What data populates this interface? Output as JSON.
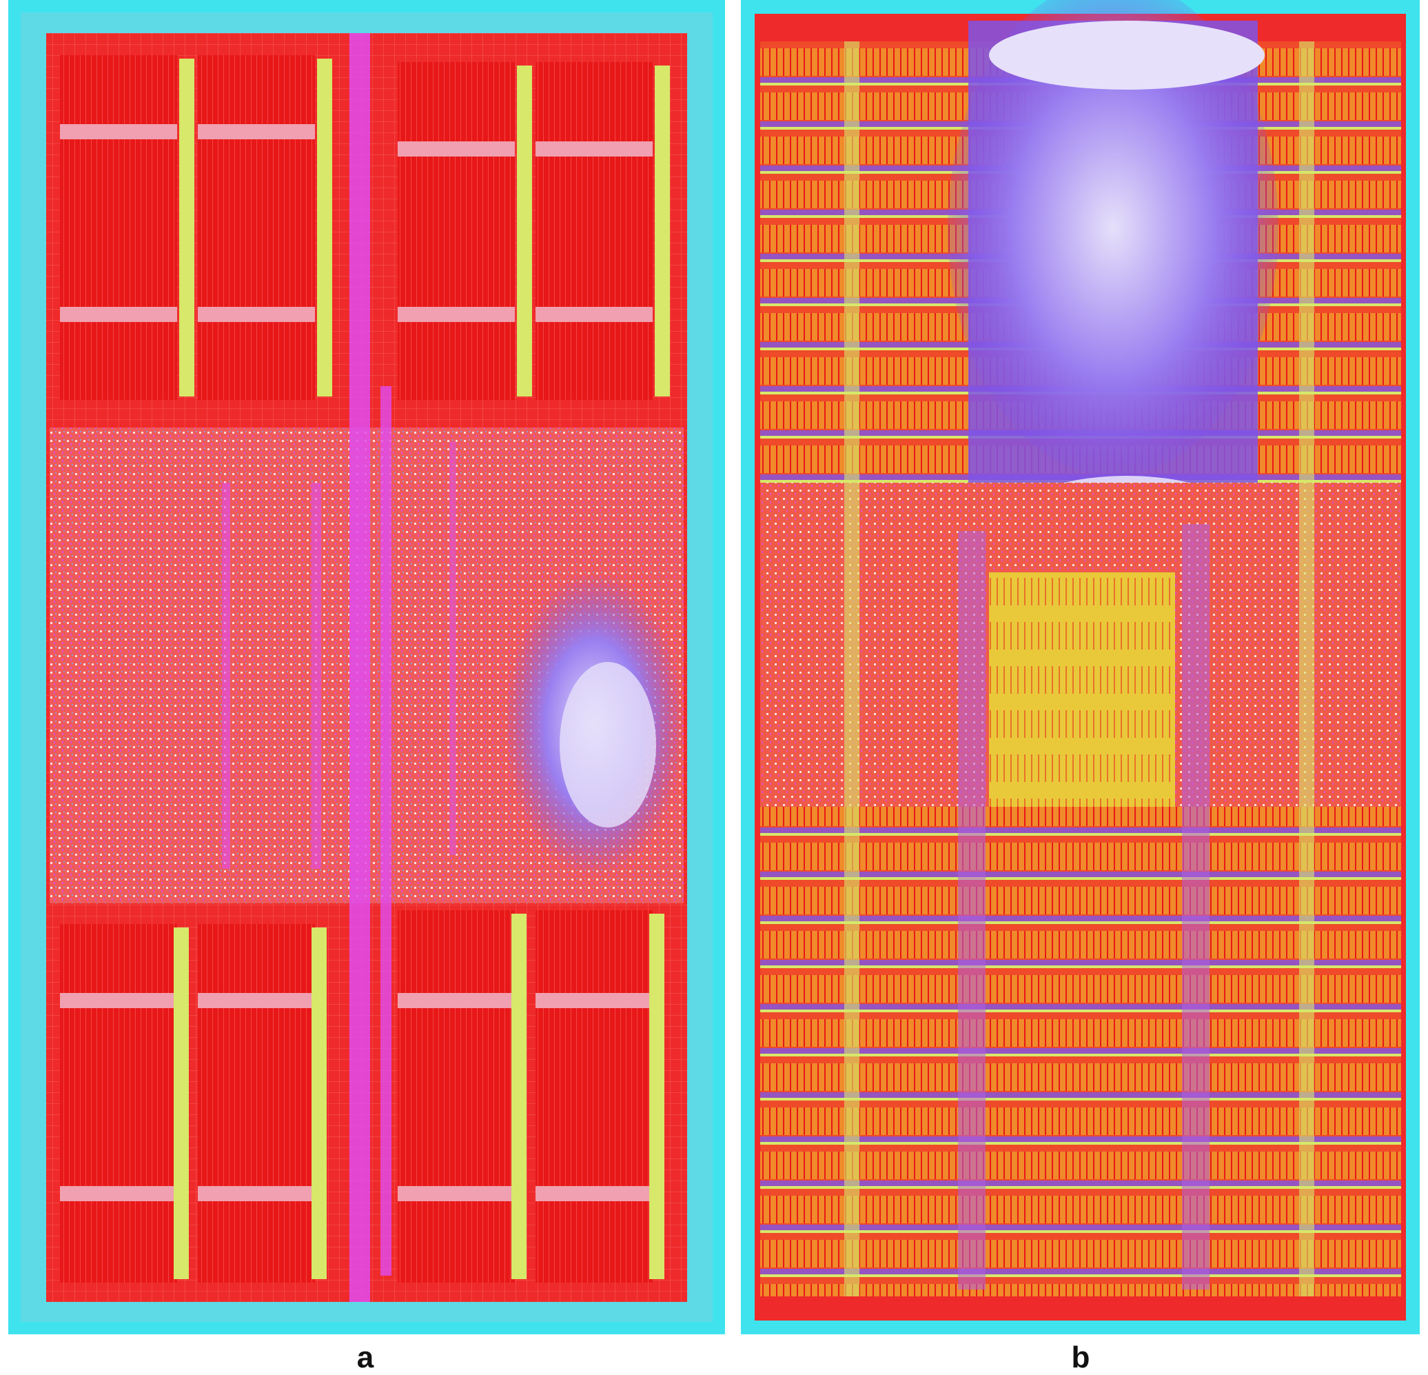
{
  "panels": [
    {
      "id": "a",
      "label": "a"
    },
    {
      "id": "b",
      "label": "b"
    }
  ],
  "colors": {
    "frame": "#3fe3ee",
    "die": "#ef2a2a",
    "macro": "#e81818",
    "power_strap": "#d7e86a",
    "routing_magenta": "#e04cf0",
    "congestion_violet": "#7f55e8",
    "congestion_light": "#d9d3f4",
    "standard_cell_orange": "#f08a2a",
    "standard_cell_yellow": "#e9c93a"
  }
}
